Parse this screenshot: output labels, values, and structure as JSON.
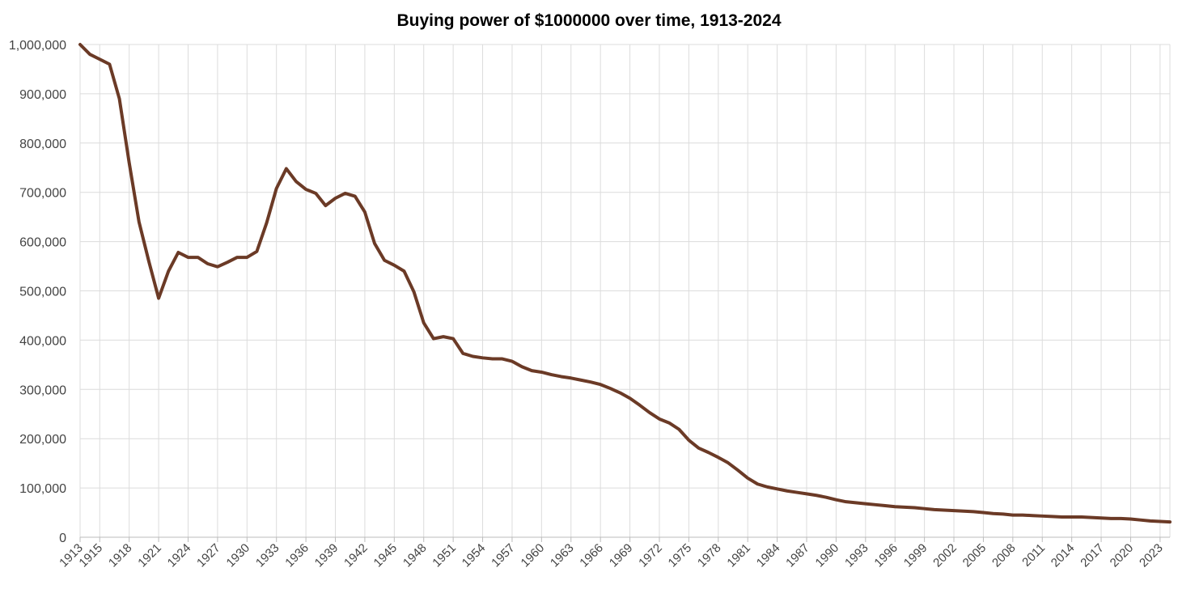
{
  "chart_data": {
    "type": "line",
    "title": "Buying power of $1000000 over time, 1913-2024",
    "xlabel": "",
    "ylabel": "",
    "x_range": [
      1913,
      2024
    ],
    "ylim": [
      0,
      1000000
    ],
    "yticks": [
      0,
      100000,
      200000,
      300000,
      400000,
      500000,
      600000,
      700000,
      800000,
      900000,
      1000000
    ],
    "ytick_labels": [
      "0",
      "100,000",
      "200,000",
      "300,000",
      "400,000",
      "500,000",
      "600,000",
      "700,000",
      "800,000",
      "900,000",
      "1,000,000"
    ],
    "xticks": [
      1913,
      1915,
      1918,
      1921,
      1924,
      1927,
      1930,
      1933,
      1936,
      1939,
      1942,
      1945,
      1948,
      1951,
      1954,
      1957,
      1960,
      1963,
      1966,
      1969,
      1972,
      1975,
      1978,
      1981,
      1984,
      1987,
      1990,
      1993,
      1996,
      1999,
      2002,
      2005,
      2008,
      2011,
      2014,
      2017,
      2020,
      2023
    ],
    "grid": true,
    "legend": "none",
    "line_color": "#6b3a26",
    "series": [
      {
        "name": "Buying power",
        "x": [
          1913,
          1914,
          1915,
          1916,
          1917,
          1918,
          1919,
          1920,
          1921,
          1922,
          1923,
          1924,
          1925,
          1926,
          1927,
          1928,
          1929,
          1930,
          1931,
          1932,
          1933,
          1934,
          1935,
          1936,
          1937,
          1938,
          1939,
          1940,
          1941,
          1942,
          1943,
          1944,
          1945,
          1946,
          1947,
          1948,
          1949,
          1950,
          1951,
          1952,
          1953,
          1954,
          1955,
          1956,
          1957,
          1958,
          1959,
          1960,
          1961,
          1962,
          1963,
          1964,
          1965,
          1966,
          1967,
          1968,
          1969,
          1970,
          1971,
          1972,
          1973,
          1974,
          1975,
          1976,
          1977,
          1978,
          1979,
          1980,
          1981,
          1982,
          1983,
          1984,
          1985,
          1986,
          1987,
          1988,
          1989,
          1990,
          1991,
          1992,
          1993,
          1994,
          1995,
          1996,
          1997,
          1998,
          1999,
          2000,
          2001,
          2002,
          2003,
          2004,
          2005,
          2006,
          2007,
          2008,
          2009,
          2010,
          2011,
          2012,
          2013,
          2014,
          2015,
          2016,
          2017,
          2018,
          2019,
          2020,
          2021,
          2022,
          2023,
          2024
        ],
        "values": [
          1000000,
          980000,
          970000,
          960000,
          890000,
          760000,
          640000,
          560000,
          485000,
          540000,
          578000,
          568000,
          568000,
          555000,
          549000,
          558000,
          568000,
          568000,
          580000,
          638000,
          708000,
          748000,
          722000,
          706000,
          698000,
          673000,
          688000,
          698000,
          692000,
          660000,
          596000,
          562000,
          552000,
          540000,
          498000,
          435000,
          403000,
          407000,
          403000,
          373000,
          367000,
          364000,
          362000,
          362000,
          357000,
          346000,
          338000,
          335000,
          330000,
          326000,
          323000,
          319000,
          315000,
          310000,
          302000,
          293000,
          282000,
          268000,
          253000,
          240000,
          232000,
          219000,
          197000,
          181000,
          172000,
          162000,
          151000,
          136000,
          120000,
          108000,
          102000,
          98000,
          94000,
          91000,
          88000,
          85000,
          81000,
          76000,
          72000,
          70000,
          68000,
          66000,
          64000,
          62000,
          61000,
          60000,
          58000,
          56000,
          55000,
          54000,
          53000,
          52000,
          50000,
          48000,
          47000,
          45000,
          45000,
          44000,
          43000,
          42000,
          41000,
          41000,
          41000,
          40000,
          39000,
          38000,
          38000,
          37000,
          35000,
          33000,
          32000,
          31000
        ]
      }
    ]
  }
}
